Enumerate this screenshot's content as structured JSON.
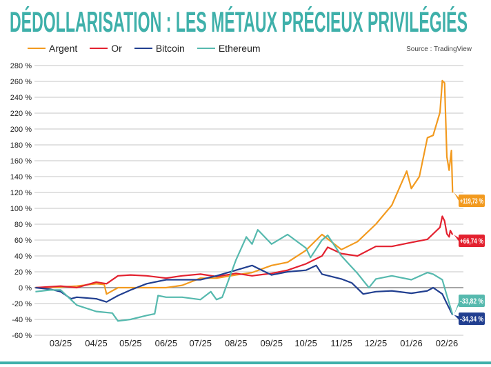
{
  "title": "DÉDOLLARISATION : LES MÉTAUX PRÉCIEUX PRIVILÉGIÉS",
  "source": "Source : TradingView",
  "chart_data": {
    "type": "line",
    "title": "DÉDOLLARISATION : LES MÉTAUX PRÉCIEUX PRIVILÉGIÉS",
    "xlabel": "",
    "ylabel": "",
    "ylim": [
      -60,
      280
    ],
    "y_ticks": [
      280,
      260,
      240,
      220,
      200,
      180,
      160,
      140,
      120,
      100,
      80,
      60,
      40,
      20,
      0,
      -20,
      -40,
      -60
    ],
    "y_tick_labels": [
      "280 %",
      "260 %",
      "240 %",
      "220 %",
      "200 %",
      "180 %",
      "160 %",
      "140 %",
      "120 %",
      "100 %",
      "80 %",
      "60 %",
      "40 %",
      "20 %",
      "0 %",
      "-20 %",
      "-40 %",
      "-60 %"
    ],
    "x_ticks": [
      "2025-03-01",
      "2025-04-01",
      "2025-05-01",
      "2025-06-01",
      "2025-07-01",
      "2025-08-01",
      "2025-09-01",
      "2025-10-01",
      "2025-11-01",
      "2025-12-01",
      "2026-01-01",
      "2026-02-01"
    ],
    "x_tick_labels": [
      "03/25",
      "04/25",
      "05/25",
      "06/25",
      "07/25",
      "08/25",
      "09/25",
      "10/25",
      "11/25",
      "12/25",
      "01/26",
      "02/26"
    ],
    "grid": "horizontal",
    "legend": "top-left",
    "series": [
      {
        "name": "Argent",
        "color": "#f29a1f",
        "end_label": "+119,73 %",
        "points": [
          [
            "2025-02-07",
            0
          ],
          [
            "2025-03-01",
            1
          ],
          [
            "2025-03-15",
            2
          ],
          [
            "2025-04-01",
            5
          ],
          [
            "2025-04-08",
            4
          ],
          [
            "2025-04-10",
            -8
          ],
          [
            "2025-04-20",
            0
          ],
          [
            "2025-05-01",
            0
          ],
          [
            "2025-05-15",
            0
          ],
          [
            "2025-06-01",
            0
          ],
          [
            "2025-06-15",
            3
          ],
          [
            "2025-07-01",
            12
          ],
          [
            "2025-07-15",
            12
          ],
          [
            "2025-08-01",
            16
          ],
          [
            "2025-08-15",
            19
          ],
          [
            "2025-09-01",
            28
          ],
          [
            "2025-09-15",
            32
          ],
          [
            "2025-10-01",
            47
          ],
          [
            "2025-10-15",
            67
          ],
          [
            "2025-11-01",
            48
          ],
          [
            "2025-11-15",
            58
          ],
          [
            "2025-12-01",
            80
          ],
          [
            "2025-12-15",
            104
          ],
          [
            "2025-12-28",
            147
          ],
          [
            "2026-01-01",
            125
          ],
          [
            "2026-01-08",
            140
          ],
          [
            "2026-01-15",
            189
          ],
          [
            "2026-01-20",
            192
          ],
          [
            "2026-01-26",
            221
          ],
          [
            "2026-01-28",
            261
          ],
          [
            "2026-01-30",
            258
          ],
          [
            "2026-02-01",
            165
          ],
          [
            "2026-02-03",
            148
          ],
          [
            "2026-02-05",
            173
          ],
          [
            "2026-02-06",
            119.73
          ]
        ]
      },
      {
        "name": "Or",
        "color": "#e3212f",
        "end_label": "+66,74 %",
        "points": [
          [
            "2025-02-07",
            0
          ],
          [
            "2025-03-01",
            2
          ],
          [
            "2025-03-15",
            0
          ],
          [
            "2025-04-01",
            7
          ],
          [
            "2025-04-10",
            5
          ],
          [
            "2025-04-20",
            15
          ],
          [
            "2025-05-01",
            16
          ],
          [
            "2025-05-15",
            15
          ],
          [
            "2025-06-01",
            12
          ],
          [
            "2025-06-15",
            15
          ],
          [
            "2025-07-01",
            17
          ],
          [
            "2025-07-15",
            14
          ],
          [
            "2025-08-01",
            18
          ],
          [
            "2025-08-15",
            15
          ],
          [
            "2025-09-01",
            18
          ],
          [
            "2025-09-15",
            22
          ],
          [
            "2025-10-01",
            30
          ],
          [
            "2025-10-15",
            40
          ],
          [
            "2025-10-20",
            51
          ],
          [
            "2025-11-01",
            43
          ],
          [
            "2025-11-15",
            40
          ],
          [
            "2025-12-01",
            52
          ],
          [
            "2025-12-15",
            52
          ],
          [
            "2026-01-01",
            57
          ],
          [
            "2026-01-15",
            61
          ],
          [
            "2026-01-26",
            76
          ],
          [
            "2026-01-28",
            90
          ],
          [
            "2026-01-30",
            84
          ],
          [
            "2026-02-01",
            68
          ],
          [
            "2026-02-03",
            64
          ],
          [
            "2026-02-04",
            72
          ],
          [
            "2026-02-06",
            66.74
          ]
        ]
      },
      {
        "name": "Bitcoin",
        "color": "#213f90",
        "end_label": "-34,34 %",
        "points": [
          [
            "2025-02-07",
            0
          ],
          [
            "2025-02-20",
            -2
          ],
          [
            "2025-03-01",
            -5
          ],
          [
            "2025-03-10",
            -14
          ],
          [
            "2025-03-15",
            -12
          ],
          [
            "2025-04-01",
            -14
          ],
          [
            "2025-04-10",
            -18
          ],
          [
            "2025-04-20",
            -10
          ],
          [
            "2025-05-01",
            -3
          ],
          [
            "2025-05-15",
            5
          ],
          [
            "2025-06-01",
            10
          ],
          [
            "2025-06-15",
            10
          ],
          [
            "2025-07-01",
            10
          ],
          [
            "2025-07-15",
            15
          ],
          [
            "2025-08-01",
            22
          ],
          [
            "2025-08-15",
            28
          ],
          [
            "2025-09-01",
            16
          ],
          [
            "2025-09-15",
            20
          ],
          [
            "2025-10-01",
            22
          ],
          [
            "2025-10-10",
            28
          ],
          [
            "2025-10-15",
            17
          ],
          [
            "2025-11-01",
            11
          ],
          [
            "2025-11-10",
            6
          ],
          [
            "2025-11-20",
            -8
          ],
          [
            "2025-12-01",
            -5
          ],
          [
            "2025-12-15",
            -4
          ],
          [
            "2026-01-01",
            -7
          ],
          [
            "2026-01-15",
            -4
          ],
          [
            "2026-01-20",
            0
          ],
          [
            "2026-01-28",
            -8
          ],
          [
            "2026-02-01",
            -20
          ],
          [
            "2026-02-06",
            -34.34
          ]
        ]
      },
      {
        "name": "Ethereum",
        "color": "#56b9ae",
        "end_label": "-33,82 %",
        "points": [
          [
            "2025-02-07",
            -5
          ],
          [
            "2025-02-20",
            -3
          ],
          [
            "2025-03-01",
            -3
          ],
          [
            "2025-03-15",
            -22
          ],
          [
            "2025-04-01",
            -30
          ],
          [
            "2025-04-15",
            -32
          ],
          [
            "2025-04-20",
            -42
          ],
          [
            "2025-05-01",
            -40
          ],
          [
            "2025-05-15",
            -35
          ],
          [
            "2025-05-22",
            -33
          ],
          [
            "2025-05-25",
            -10
          ],
          [
            "2025-06-01",
            -12
          ],
          [
            "2025-06-15",
            -12
          ],
          [
            "2025-07-01",
            -15
          ],
          [
            "2025-07-10",
            -5
          ],
          [
            "2025-07-15",
            -15
          ],
          [
            "2025-07-20",
            -12
          ],
          [
            "2025-08-01",
            35
          ],
          [
            "2025-08-10",
            64
          ],
          [
            "2025-08-15",
            55
          ],
          [
            "2025-08-20",
            73
          ],
          [
            "2025-09-01",
            55
          ],
          [
            "2025-09-15",
            67
          ],
          [
            "2025-10-01",
            50
          ],
          [
            "2025-10-05",
            38
          ],
          [
            "2025-10-15",
            60
          ],
          [
            "2025-10-20",
            66
          ],
          [
            "2025-11-01",
            40
          ],
          [
            "2025-11-15",
            18
          ],
          [
            "2025-11-25",
            0
          ],
          [
            "2025-12-01",
            11
          ],
          [
            "2025-12-15",
            15
          ],
          [
            "2026-01-01",
            10
          ],
          [
            "2026-01-15",
            19
          ],
          [
            "2026-01-20",
            17
          ],
          [
            "2026-01-28",
            10
          ],
          [
            "2026-02-01",
            -10
          ],
          [
            "2026-02-06",
            -33.82
          ]
        ]
      }
    ]
  }
}
